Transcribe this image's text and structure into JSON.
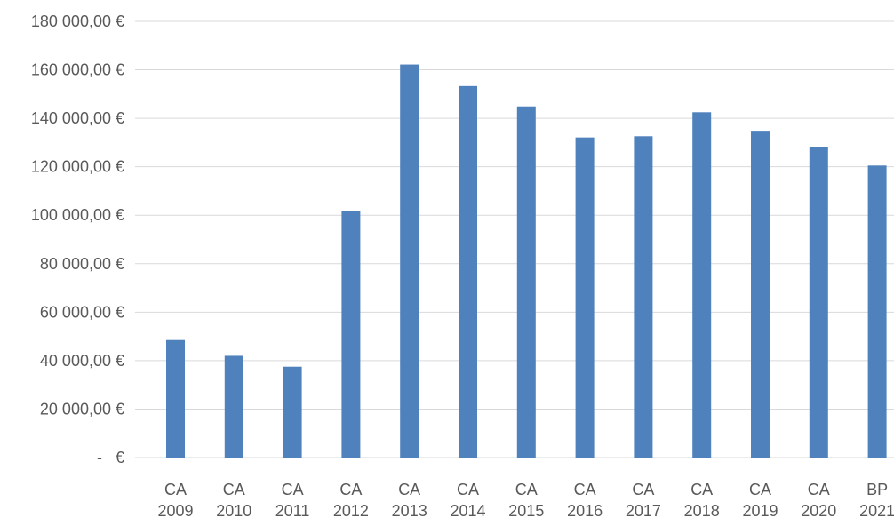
{
  "chart_data": {
    "type": "bar",
    "categories": [
      [
        "CA",
        "2009"
      ],
      [
        "CA",
        "2010"
      ],
      [
        "CA",
        "2011"
      ],
      [
        "CA",
        "2012"
      ],
      [
        "CA",
        "2013"
      ],
      [
        "CA",
        "2014"
      ],
      [
        "CA",
        "2015"
      ],
      [
        "CA",
        "2016"
      ],
      [
        "CA",
        "2017"
      ],
      [
        "CA",
        "2018"
      ],
      [
        "CA",
        "2019"
      ],
      [
        "CA",
        "2020"
      ],
      [
        "BP",
        "2021"
      ]
    ],
    "values": [
      48500,
      42000,
      37500,
      101800,
      162200,
      153300,
      144900,
      132100,
      132600,
      142500,
      134500,
      128000,
      120500
    ],
    "ylim": [
      0,
      180000
    ],
    "yticks": [
      0,
      20000,
      40000,
      60000,
      80000,
      100000,
      120000,
      140000,
      160000,
      180000
    ],
    "ytick_labels": [
      "-   €",
      "20 000,00 €",
      "40 000,00 €",
      "60 000,00 €",
      "80 000,00 €",
      "100 000,00 €",
      "120 000,00 €",
      "140 000,00 €",
      "160 000,00 €",
      "180 000,00 €"
    ],
    "grid": true,
    "bar_color": "#4f81bd",
    "title": "",
    "xlabel": "",
    "ylabel": ""
  }
}
